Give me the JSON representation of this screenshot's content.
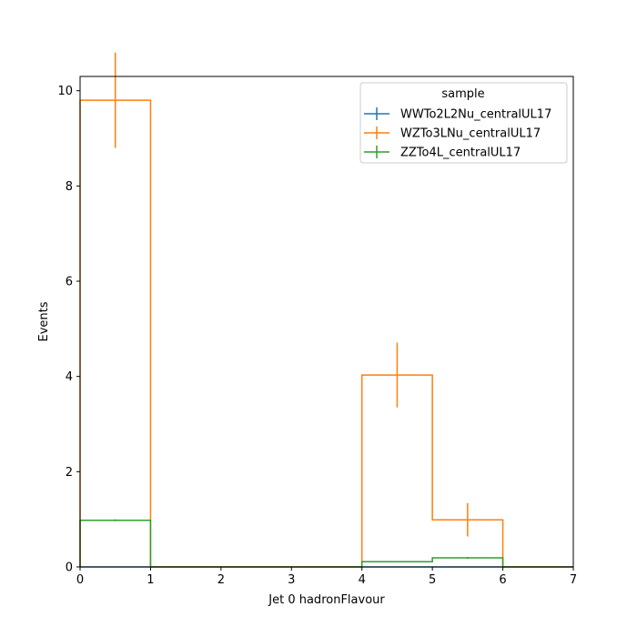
{
  "chart_data": {
    "type": "step-histogram",
    "xlabel": "Jet 0 hadronFlavour",
    "ylabel": "Events",
    "xlim": [
      0,
      7
    ],
    "ylim": [
      0,
      10.3
    ],
    "x_ticks": [
      "0",
      "1",
      "2",
      "3",
      "4",
      "5",
      "6",
      "7"
    ],
    "y_ticks": [
      "0",
      "2",
      "4",
      "6",
      "8",
      "10"
    ],
    "bin_edges": [
      0,
      1,
      2,
      3,
      4,
      5,
      6,
      7
    ],
    "grid": false,
    "legend": {
      "title": "sample",
      "placement": "top-right"
    },
    "series": [
      {
        "name": "WWTo2L2Nu_centralUL17",
        "color": "#1f77b4",
        "values": [
          0,
          0,
          0,
          0,
          0,
          0,
          0
        ],
        "errors": [
          0,
          0,
          0,
          0,
          0,
          0,
          0
        ]
      },
      {
        "name": "WZTo3LNu_centralUL17",
        "color": "#ff7f0e",
        "values": [
          9.8,
          0,
          0,
          0,
          4.03,
          0.99,
          0
        ],
        "errors": [
          1.0,
          0,
          0,
          0,
          0.68,
          0.35,
          0
        ]
      },
      {
        "name": "ZZTo4L_centralUL17",
        "color": "#2ca02c",
        "values": [
          0.98,
          0,
          0,
          0,
          0.11,
          0.19,
          0
        ],
        "errors": [
          0.02,
          0,
          0,
          0,
          0.01,
          0.02,
          0
        ]
      }
    ]
  }
}
